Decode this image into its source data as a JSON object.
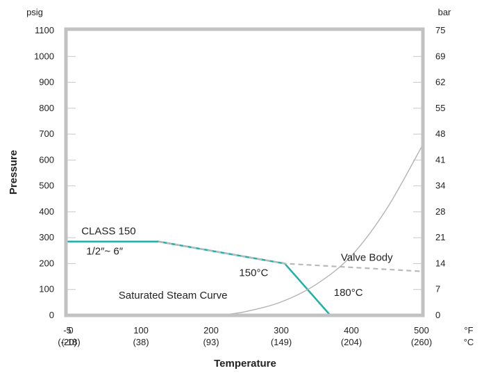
{
  "chart_data": {
    "type": "line",
    "xlabel": "Temperature",
    "ylabel": "Pressure",
    "y_unit_left": "psig",
    "y_unit_right": "bar",
    "x_unit_top": "°F",
    "x_unit_bottom": "°C",
    "xlim": [
      -5,
      500
    ],
    "ylim": [
      0,
      1100
    ],
    "grid": false,
    "x_ticks": [
      {
        "value": -5,
        "label": "-5",
        "sublabel": "(-20)"
      },
      {
        "value": 0,
        "label": "0",
        "sublabel": "(-18)"
      },
      {
        "value": 100,
        "label": "100",
        "sublabel": "(38)"
      },
      {
        "value": 200,
        "label": "200",
        "sublabel": "(93)"
      },
      {
        "value": 300,
        "label": "300",
        "sublabel": "(149)"
      },
      {
        "value": 400,
        "label": "400",
        "sublabel": "(204)"
      },
      {
        "value": 500,
        "label": "500",
        "sublabel": "(260)"
      }
    ],
    "y_ticks_left": [
      {
        "value": 0,
        "label": "0"
      },
      {
        "value": 100,
        "label": "100"
      },
      {
        "value": 200,
        "label": "200"
      },
      {
        "value": 300,
        "label": "300"
      },
      {
        "value": 400,
        "label": "400"
      },
      {
        "value": 500,
        "label": "500"
      },
      {
        "value": 600,
        "label": "600"
      },
      {
        "value": 700,
        "label": "700"
      },
      {
        "value": 800,
        "label": "800"
      },
      {
        "value": 900,
        "label": "900"
      },
      {
        "value": 1000,
        "label": "1000"
      },
      {
        "value": 1100,
        "label": "1100"
      }
    ],
    "y_ticks_right": [
      {
        "value": 0,
        "label": "0"
      },
      {
        "value": 100,
        "label": "7"
      },
      {
        "value": 200,
        "label": "14"
      },
      {
        "value": 300,
        "label": "21"
      },
      {
        "value": 400,
        "label": "28"
      },
      {
        "value": 500,
        "label": "34"
      },
      {
        "value": 600,
        "label": "41"
      },
      {
        "value": 700,
        "label": "48"
      },
      {
        "value": 800,
        "label": "55"
      },
      {
        "value": 900,
        "label": "62"
      },
      {
        "value": 1000,
        "label": "69"
      },
      {
        "value": 1100,
        "label": "75"
      }
    ],
    "series": [
      {
        "key": "rating",
        "style": "solid",
        "color": "#1fb2a6",
        "points": [
          [
            -5,
            285
          ],
          [
            125,
            285
          ],
          [
            305,
            200
          ],
          [
            370,
            0
          ]
        ]
      },
      {
        "key": "valve-body",
        "style": "dashed",
        "color": "#b9b9b9",
        "points": [
          [
            125,
            285
          ],
          [
            305,
            200
          ],
          [
            500,
            170
          ]
        ]
      },
      {
        "key": "steam",
        "style": "curve",
        "color": "#b3b3b3",
        "points": [
          [
            212,
            0
          ],
          [
            250,
            15
          ],
          [
            300,
            52
          ],
          [
            350,
            120
          ],
          [
            400,
            230
          ],
          [
            450,
            410
          ],
          [
            500,
            650
          ]
        ]
      }
    ],
    "annotations": [
      {
        "text": "CLASS 150",
        "x": 15,
        "y": 312
      },
      {
        "text": "1/2″~ 6″",
        "x": 22,
        "y": 235
      },
      {
        "text": "Valve Body",
        "x": 385,
        "y": 210
      },
      {
        "text": "150°C",
        "x": 240,
        "y": 152
      },
      {
        "text": "180°C",
        "x": 375,
        "y": 75
      },
      {
        "text": "Saturated Steam Curve",
        "x": 68,
        "y": 65
      }
    ]
  },
  "colors": {
    "frame": "#c2c2c2",
    "rating_line": "#1fb2a6",
    "valve_body_line": "#b9b9b9",
    "steam_curve": "#b3b3b3"
  }
}
